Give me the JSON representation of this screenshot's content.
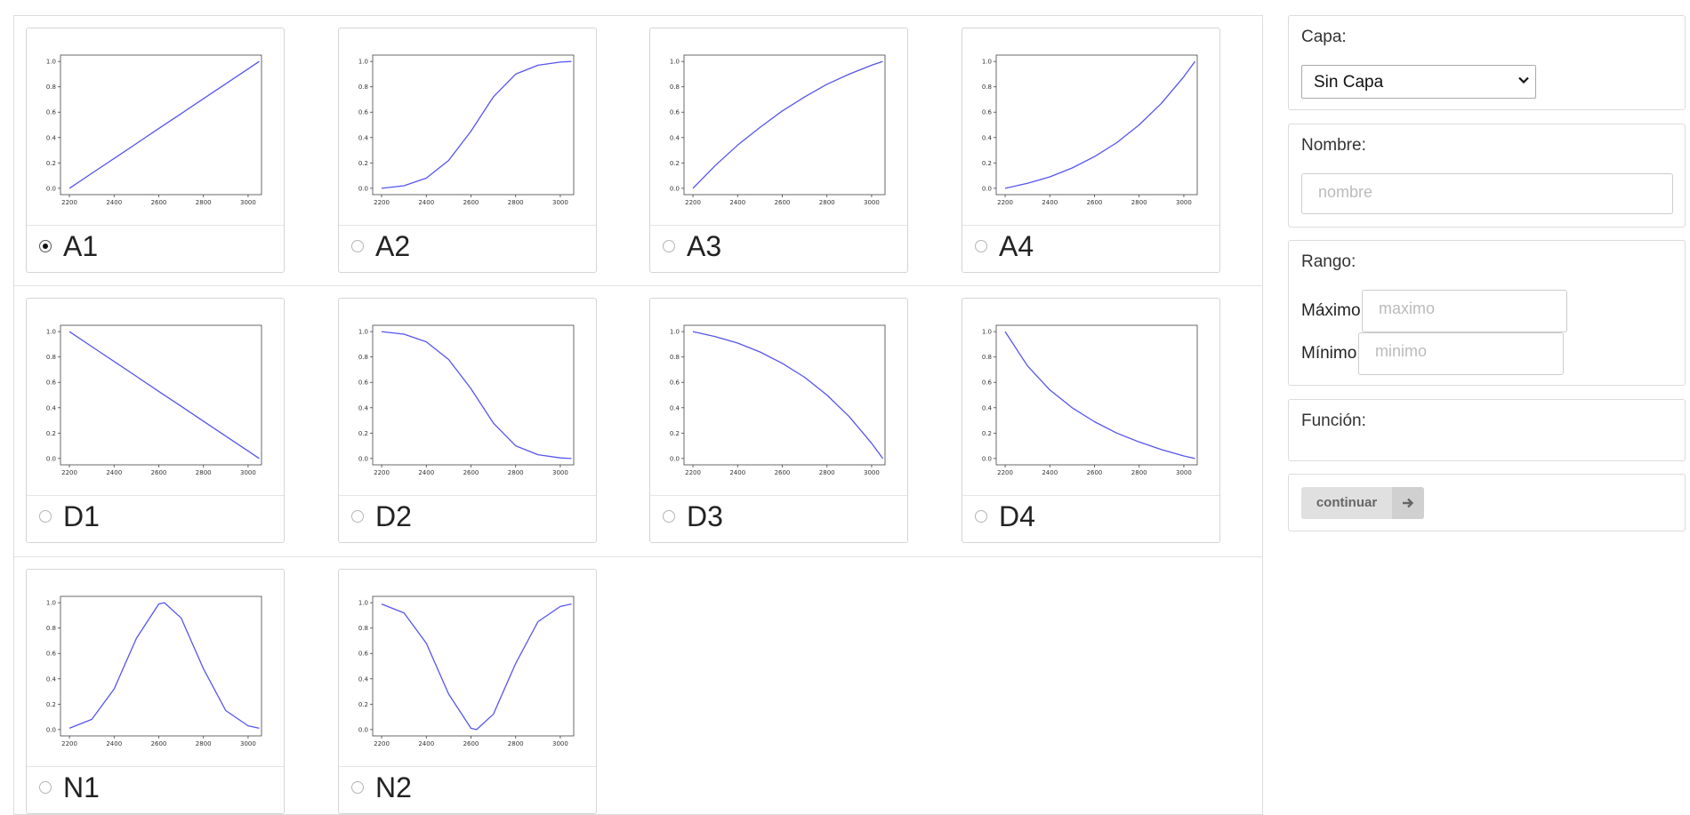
{
  "cards": [
    {
      "label": "A1",
      "curve": "linear-up",
      "selected": true
    },
    {
      "label": "A2",
      "curve": "sigmoid-up",
      "selected": false
    },
    {
      "label": "A3",
      "curve": "concave-up",
      "selected": false
    },
    {
      "label": "A4",
      "curve": "convex-up",
      "selected": false
    },
    {
      "label": "D1",
      "curve": "linear-down",
      "selected": false
    },
    {
      "label": "D2",
      "curve": "sigmoid-down",
      "selected": false
    },
    {
      "label": "D3",
      "curve": "concave-down",
      "selected": false
    },
    {
      "label": "D4",
      "curve": "convex-down",
      "selected": false
    },
    {
      "label": "N1",
      "curve": "gaussian",
      "selected": false
    },
    {
      "label": "N2",
      "curve": "inverted-gaussian",
      "selected": false
    }
  ],
  "chart_axes": {
    "x_ticks": [
      "2200",
      "2400",
      "2600",
      "2800",
      "3000"
    ],
    "y_ticks": [
      "0.0",
      "0.2",
      "0.4",
      "0.6",
      "0.8",
      "1.0"
    ],
    "xlim": [
      2160,
      3060
    ],
    "ylim": [
      -0.05,
      1.05
    ],
    "line_color": "#5555ee"
  },
  "chart_data": [
    {
      "type": "line",
      "title": "A1",
      "x": [
        2200,
        2300,
        2400,
        2500,
        2600,
        2700,
        2800,
        2900,
        3000,
        3050
      ],
      "y": [
        0.0,
        0.118,
        0.235,
        0.353,
        0.471,
        0.588,
        0.706,
        0.824,
        0.941,
        1.0
      ]
    },
    {
      "type": "line",
      "title": "A2",
      "x": [
        2200,
        2300,
        2400,
        2500,
        2600,
        2700,
        2800,
        2900,
        3000,
        3050
      ],
      "y": [
        0.0,
        0.02,
        0.08,
        0.22,
        0.45,
        0.72,
        0.9,
        0.97,
        0.995,
        1.0
      ]
    },
    {
      "type": "line",
      "title": "A3",
      "x": [
        2200,
        2300,
        2400,
        2500,
        2600,
        2700,
        2800,
        2900,
        3000,
        3050
      ],
      "y": [
        0.0,
        0.18,
        0.34,
        0.48,
        0.61,
        0.72,
        0.82,
        0.9,
        0.97,
        1.0
      ]
    },
    {
      "type": "line",
      "title": "A4",
      "x": [
        2200,
        2300,
        2400,
        2500,
        2600,
        2700,
        2800,
        2900,
        3000,
        3050
      ],
      "y": [
        0.0,
        0.04,
        0.09,
        0.16,
        0.25,
        0.36,
        0.5,
        0.67,
        0.88,
        1.0
      ]
    },
    {
      "type": "line",
      "title": "D1",
      "x": [
        2200,
        2300,
        2400,
        2500,
        2600,
        2700,
        2800,
        2900,
        3000,
        3050
      ],
      "y": [
        1.0,
        0.882,
        0.765,
        0.647,
        0.529,
        0.412,
        0.294,
        0.176,
        0.059,
        0.0
      ]
    },
    {
      "type": "line",
      "title": "D2",
      "x": [
        2200,
        2300,
        2400,
        2500,
        2600,
        2700,
        2800,
        2900,
        3000,
        3050
      ],
      "y": [
        1.0,
        0.98,
        0.92,
        0.78,
        0.55,
        0.28,
        0.1,
        0.03,
        0.005,
        0.0
      ]
    },
    {
      "type": "line",
      "title": "D3",
      "x": [
        2200,
        2300,
        2400,
        2500,
        2600,
        2700,
        2800,
        2900,
        3000,
        3050
      ],
      "y": [
        1.0,
        0.96,
        0.91,
        0.84,
        0.75,
        0.64,
        0.5,
        0.33,
        0.12,
        0.0
      ]
    },
    {
      "type": "line",
      "title": "D4",
      "x": [
        2200,
        2300,
        2400,
        2500,
        2600,
        2700,
        2800,
        2900,
        3000,
        3050
      ],
      "y": [
        1.0,
        0.73,
        0.54,
        0.4,
        0.29,
        0.2,
        0.13,
        0.07,
        0.02,
        0.0
      ]
    },
    {
      "type": "line",
      "title": "N1",
      "x": [
        2200,
        2300,
        2400,
        2500,
        2600,
        2625,
        2700,
        2800,
        2900,
        3000,
        3050
      ],
      "y": [
        0.01,
        0.08,
        0.32,
        0.72,
        0.99,
        1.0,
        0.88,
        0.48,
        0.15,
        0.03,
        0.01
      ]
    },
    {
      "type": "line",
      "title": "N2",
      "x": [
        2200,
        2300,
        2400,
        2500,
        2600,
        2625,
        2700,
        2800,
        2900,
        3000,
        3050
      ],
      "y": [
        0.99,
        0.92,
        0.68,
        0.28,
        0.01,
        0.0,
        0.12,
        0.52,
        0.85,
        0.97,
        0.99
      ]
    }
  ],
  "sidebar": {
    "capa": {
      "title": "Capa:",
      "selected": "Sin Capa"
    },
    "nombre": {
      "title": "Nombre:",
      "placeholder": "nombre"
    },
    "rango": {
      "title": "Rango:",
      "max_label": "Máximo",
      "max_placeholder": "maximo",
      "min_label": "Mínimo",
      "min_placeholder": "minimo"
    },
    "funcion": {
      "title": "Función:"
    },
    "continue_label": "continuar",
    "continue_icon": "arrow-right-icon"
  }
}
